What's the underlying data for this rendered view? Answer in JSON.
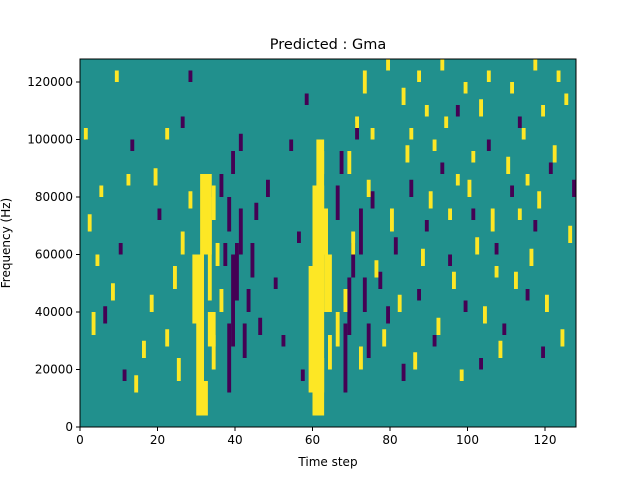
{
  "chart_data": {
    "type": "heatmap",
    "title": "Predicted : Gma",
    "xlabel": "Time step",
    "ylabel": "Frequency (Hz)",
    "xlim": [
      0,
      128
    ],
    "ylim": [
      0,
      128000
    ],
    "x_ticks": [
      0,
      20,
      40,
      60,
      80,
      100,
      120
    ],
    "y_ticks": [
      0,
      20000,
      40000,
      60000,
      80000,
      100000,
      120000
    ],
    "grid": false,
    "colormap": "viridis",
    "colors": {
      "background": "#21908d",
      "high": "#fde725",
      "low": "#440154"
    },
    "high_rects": [
      [
        30,
        2,
        3,
        6
      ],
      [
        30,
        8,
        2,
        22
      ],
      [
        31,
        30,
        3,
        14
      ],
      [
        33,
        22,
        1,
        18
      ],
      [
        34,
        36,
        1,
        6
      ],
      [
        29,
        18,
        2,
        12
      ],
      [
        33,
        14,
        2,
        6
      ],
      [
        34,
        10,
        1,
        6
      ],
      [
        35,
        28,
        1,
        4
      ],
      [
        36,
        20,
        1,
        4
      ],
      [
        60,
        2,
        3,
        6
      ],
      [
        59,
        6,
        4,
        22
      ],
      [
        60,
        28,
        3,
        14
      ],
      [
        61,
        36,
        2,
        14
      ],
      [
        62,
        30,
        2,
        8
      ],
      [
        63,
        20,
        2,
        10
      ],
      [
        64,
        10,
        1,
        6
      ],
      [
        62,
        8,
        1,
        4
      ],
      [
        66,
        14,
        1,
        6
      ],
      [
        62,
        44,
        1,
        4
      ],
      [
        24,
        24,
        1,
        4
      ],
      [
        25,
        8,
        1,
        4
      ],
      [
        22,
        14,
        1,
        3
      ],
      [
        26,
        30,
        1,
        4
      ],
      [
        28,
        38,
        1,
        3
      ],
      [
        18,
        20,
        1,
        3
      ],
      [
        16,
        12,
        1,
        3
      ],
      [
        14,
        6,
        1,
        3
      ],
      [
        19,
        42,
        1,
        3
      ],
      [
        22,
        50,
        1,
        2
      ],
      [
        8,
        22,
        1,
        3
      ],
      [
        5,
        40,
        1,
        2
      ],
      [
        3,
        16,
        1,
        4
      ],
      [
        2,
        34,
        1,
        3
      ],
      [
        4,
        28,
        1,
        2
      ],
      [
        1,
        50,
        1,
        2
      ],
      [
        9,
        60,
        1,
        2
      ],
      [
        12,
        42,
        1,
        2
      ],
      [
        68,
        20,
        1,
        4
      ],
      [
        70,
        30,
        1,
        4
      ],
      [
        72,
        10,
        1,
        4
      ],
      [
        74,
        40,
        1,
        3
      ],
      [
        76,
        26,
        1,
        3
      ],
      [
        78,
        14,
        1,
        3
      ],
      [
        69,
        44,
        1,
        4
      ],
      [
        71,
        52,
        1,
        2
      ],
      [
        73,
        58,
        1,
        4
      ],
      [
        75,
        50,
        1,
        2
      ],
      [
        80,
        34,
        1,
        4
      ],
      [
        82,
        20,
        1,
        3
      ],
      [
        84,
        46,
        1,
        3
      ],
      [
        86,
        10,
        1,
        3
      ],
      [
        88,
        28,
        1,
        3
      ],
      [
        90,
        38,
        1,
        3
      ],
      [
        92,
        16,
        1,
        3
      ],
      [
        94,
        52,
        1,
        2
      ],
      [
        96,
        24,
        1,
        3
      ],
      [
        98,
        8,
        1,
        2
      ],
      [
        100,
        40,
        1,
        3
      ],
      [
        102,
        30,
        1,
        3
      ],
      [
        104,
        18,
        1,
        3
      ],
      [
        106,
        34,
        1,
        4
      ],
      [
        108,
        12,
        1,
        3
      ],
      [
        110,
        44,
        1,
        3
      ],
      [
        112,
        24,
        1,
        3
      ],
      [
        114,
        50,
        1,
        2
      ],
      [
        116,
        28,
        1,
        3
      ],
      [
        118,
        38,
        1,
        3
      ],
      [
        120,
        20,
        1,
        3
      ],
      [
        122,
        46,
        1,
        3
      ],
      [
        124,
        14,
        1,
        3
      ],
      [
        126,
        32,
        1,
        3
      ],
      [
        83,
        56,
        1,
        3
      ],
      [
        87,
        60,
        1,
        2
      ],
      [
        91,
        48,
        1,
        2
      ],
      [
        95,
        36,
        1,
        2
      ],
      [
        99,
        58,
        1,
        2
      ],
      [
        103,
        54,
        1,
        3
      ],
      [
        107,
        26,
        1,
        2
      ],
      [
        111,
        58,
        1,
        2
      ],
      [
        115,
        42,
        1,
        2
      ],
      [
        119,
        54,
        1,
        2
      ],
      [
        123,
        60,
        1,
        2
      ],
      [
        79,
        62,
        1,
        2
      ],
      [
        85,
        50,
        1,
        2
      ],
      [
        93,
        62,
        1,
        2
      ],
      [
        101,
        46,
        1,
        2
      ],
      [
        113,
        36,
        1,
        2
      ],
      [
        117,
        62,
        1,
        2
      ],
      [
        125,
        56,
        1,
        2
      ],
      [
        97,
        42,
        1,
        2
      ],
      [
        89,
        54,
        1,
        2
      ],
      [
        105,
        60,
        1,
        2
      ]
    ],
    "low_rects": [
      [
        38,
        6,
        1,
        12
      ],
      [
        39,
        14,
        1,
        16
      ],
      [
        40,
        22,
        1,
        10
      ],
      [
        41,
        30,
        1,
        8
      ],
      [
        38,
        34,
        1,
        6
      ],
      [
        42,
        12,
        1,
        6
      ],
      [
        43,
        20,
        1,
        4
      ],
      [
        44,
        26,
        1,
        6
      ],
      [
        36,
        40,
        1,
        4
      ],
      [
        37,
        28,
        1,
        4
      ],
      [
        39,
        44,
        1,
        4
      ],
      [
        41,
        48,
        1,
        3
      ],
      [
        45,
        36,
        1,
        3
      ],
      [
        46,
        16,
        1,
        3
      ],
      [
        68,
        6,
        1,
        12
      ],
      [
        69,
        16,
        1,
        10
      ],
      [
        70,
        26,
        1,
        6
      ],
      [
        72,
        30,
        1,
        8
      ],
      [
        73,
        20,
        1,
        6
      ],
      [
        74,
        12,
        1,
        6
      ],
      [
        66,
        36,
        1,
        6
      ],
      [
        67,
        44,
        1,
        4
      ],
      [
        71,
        50,
        1,
        3
      ],
      [
        75,
        38,
        1,
        3
      ],
      [
        77,
        24,
        1,
        3
      ],
      [
        79,
        18,
        1,
        3
      ],
      [
        81,
        30,
        1,
        3
      ],
      [
        83,
        8,
        1,
        3
      ],
      [
        85,
        40,
        1,
        3
      ],
      [
        87,
        22,
        1,
        2
      ],
      [
        89,
        34,
        1,
        2
      ],
      [
        91,
        14,
        1,
        2
      ],
      [
        93,
        44,
        1,
        2
      ],
      [
        95,
        28,
        1,
        2
      ],
      [
        97,
        54,
        1,
        2
      ],
      [
        99,
        20,
        1,
        2
      ],
      [
        101,
        36,
        1,
        2
      ],
      [
        103,
        10,
        1,
        2
      ],
      [
        105,
        48,
        1,
        2
      ],
      [
        107,
        30,
        1,
        2
      ],
      [
        109,
        16,
        1,
        2
      ],
      [
        111,
        40,
        1,
        2
      ],
      [
        113,
        52,
        1,
        2
      ],
      [
        115,
        22,
        1,
        2
      ],
      [
        117,
        34,
        1,
        2
      ],
      [
        119,
        12,
        1,
        2
      ],
      [
        121,
        44,
        1,
        2
      ],
      [
        127,
        40,
        1,
        3
      ],
      [
        10,
        30,
        1,
        2
      ],
      [
        6,
        18,
        1,
        3
      ],
      [
        13,
        48,
        1,
        2
      ],
      [
        20,
        36,
        1,
        2
      ],
      [
        26,
        52,
        1,
        2
      ],
      [
        11,
        8,
        1,
        2
      ],
      [
        28,
        60,
        1,
        2
      ],
      [
        48,
        40,
        1,
        3
      ],
      [
        50,
        24,
        1,
        2
      ],
      [
        52,
        14,
        1,
        2
      ],
      [
        54,
        48,
        1,
        2
      ],
      [
        56,
        32,
        1,
        2
      ],
      [
        57,
        8,
        1,
        2
      ],
      [
        58,
        56,
        1,
        2
      ]
    ]
  }
}
